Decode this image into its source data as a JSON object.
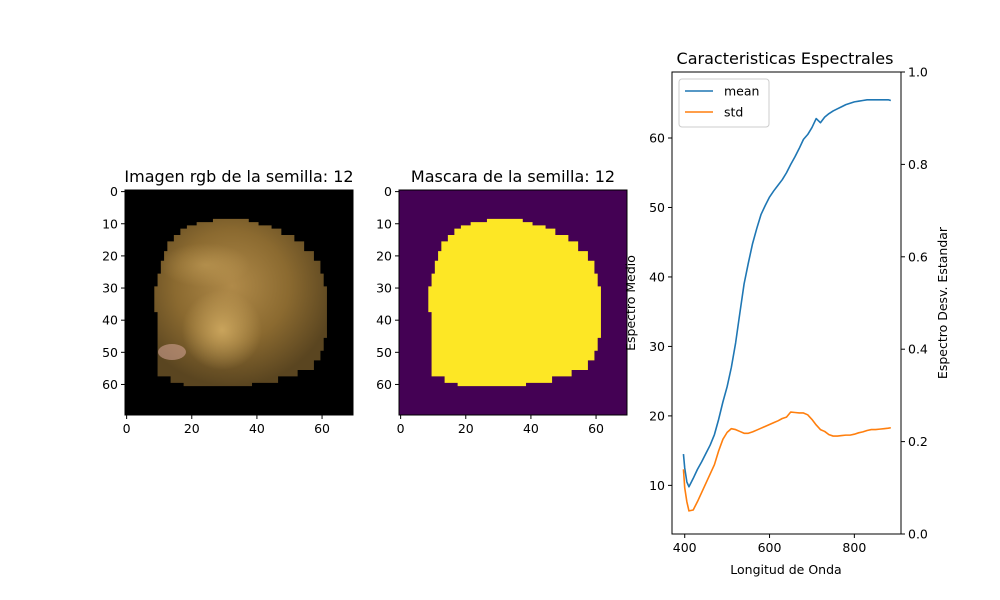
{
  "chart_data": [
    {
      "type": "image",
      "title": "Imagen rgb de la semilla: 12",
      "xticks": [
        "0",
        "20",
        "40",
        "60"
      ],
      "yticks": [
        "0",
        "10",
        "20",
        "30",
        "40",
        "50",
        "60"
      ],
      "xlim": [
        0,
        70
      ],
      "ylim": [
        70,
        0
      ],
      "colors": {
        "background": "#000000",
        "seed_main": "#8a6a2e",
        "seed_highlight": "#c9a35b",
        "seed_shadow": "#4a3a1e",
        "seed_pink": "#d8a89a"
      }
    },
    {
      "type": "image",
      "title": "Mascara de la semilla: 12",
      "xticks": [
        "0",
        "20",
        "40",
        "60"
      ],
      "yticks": [
        "0",
        "10",
        "20",
        "30",
        "40",
        "50",
        "60"
      ],
      "xlim": [
        0,
        70
      ],
      "ylim": [
        70,
        0
      ],
      "colors": {
        "background": "#440154",
        "mask": "#fde725"
      },
      "mask_rows": [
        {
          "y": 9,
          "x0": 27,
          "x1": 37
        },
        {
          "y": 10,
          "x0": 22,
          "x1": 40
        },
        {
          "y": 11,
          "x0": 19,
          "x1": 44
        },
        {
          "y": 12,
          "x0": 17,
          "x1": 47
        },
        {
          "y": 14,
          "x0": 15,
          "x1": 51
        },
        {
          "y": 16,
          "x0": 13,
          "x1": 54
        },
        {
          "y": 19,
          "x0": 12,
          "x1": 57
        },
        {
          "y": 22,
          "x0": 11,
          "x1": 59
        },
        {
          "y": 26,
          "x0": 10,
          "x1": 60
        },
        {
          "y": 30,
          "x0": 9,
          "x1": 61
        },
        {
          "y": 34,
          "x0": 9,
          "x1": 61
        },
        {
          "y": 38,
          "x0": 10,
          "x1": 61
        },
        {
          "y": 42,
          "x0": 10,
          "x1": 61
        },
        {
          "y": 46,
          "x0": 10,
          "x1": 60
        },
        {
          "y": 50,
          "x0": 10,
          "x1": 59
        },
        {
          "y": 53,
          "x0": 10,
          "x1": 57
        },
        {
          "y": 56,
          "x0": 10,
          "x1": 52
        },
        {
          "y": 58,
          "x0": 14,
          "x1": 46
        },
        {
          "y": 60,
          "x0": 18,
          "x1": 38
        }
      ]
    },
    {
      "type": "line",
      "title": "Caracteristicas Espectrales",
      "xlabel": "Longitud de Onda",
      "ylabel": "Espectro Medio",
      "ylabel_right": "Espectro Desv. Estandar",
      "xlim": [
        370,
        910
      ],
      "ylim": [
        3,
        69.5
      ],
      "ylim_right": [
        0.0,
        1.0
      ],
      "xticks": [
        400,
        600,
        800
      ],
      "yticks": [
        10,
        20,
        30,
        40,
        50,
        60
      ],
      "yticks_right": [
        "0.0",
        "0.2",
        "0.4",
        "0.6",
        "0.8",
        "1.0"
      ],
      "legend": "upper-left",
      "grid": false,
      "series": [
        {
          "name": "mean",
          "color": "#1f77b4",
          "x": [
            397,
            400,
            405,
            410,
            420,
            430,
            440,
            450,
            460,
            470,
            480,
            490,
            500,
            510,
            520,
            530,
            540,
            550,
            560,
            570,
            580,
            590,
            600,
            610,
            620,
            630,
            640,
            650,
            660,
            670,
            680,
            690,
            700,
            710,
            720,
            730,
            740,
            750,
            760,
            770,
            780,
            790,
            800,
            810,
            820,
            830,
            840,
            850,
            860,
            870,
            880,
            886
          ],
          "y": [
            14.5,
            12.5,
            10.5,
            9.8,
            11.0,
            12.3,
            13.4,
            14.6,
            15.8,
            17.3,
            19.5,
            22.0,
            24.2,
            27.0,
            30.5,
            34.8,
            39.0,
            42.0,
            44.8,
            47.0,
            49.0,
            50.3,
            51.5,
            52.4,
            53.2,
            54.0,
            55.0,
            56.2,
            57.3,
            58.5,
            59.8,
            60.5,
            61.5,
            62.8,
            62.2,
            63.0,
            63.5,
            63.9,
            64.2,
            64.5,
            64.8,
            65.0,
            65.2,
            65.3,
            65.4,
            65.5,
            65.5,
            65.5,
            65.5,
            65.5,
            65.5,
            65.4
          ]
        },
        {
          "name": "std",
          "color": "#ff7f0e",
          "x": [
            397,
            400,
            405,
            410,
            420,
            430,
            440,
            450,
            460,
            470,
            480,
            490,
            500,
            510,
            520,
            530,
            540,
            550,
            560,
            570,
            580,
            590,
            600,
            610,
            620,
            630,
            640,
            650,
            660,
            670,
            680,
            690,
            700,
            710,
            720,
            730,
            740,
            750,
            760,
            770,
            780,
            790,
            800,
            810,
            820,
            830,
            840,
            850,
            860,
            870,
            880,
            886
          ],
          "y": [
            0.14,
            0.1,
            0.07,
            0.05,
            0.052,
            0.07,
            0.09,
            0.11,
            0.13,
            0.15,
            0.18,
            0.205,
            0.22,
            0.228,
            0.226,
            0.222,
            0.218,
            0.218,
            0.221,
            0.225,
            0.229,
            0.233,
            0.237,
            0.241,
            0.245,
            0.25,
            0.253,
            0.264,
            0.263,
            0.262,
            0.262,
            0.258,
            0.248,
            0.236,
            0.226,
            0.222,
            0.215,
            0.212,
            0.212,
            0.213,
            0.214,
            0.214,
            0.216,
            0.219,
            0.221,
            0.224,
            0.226,
            0.226,
            0.227,
            0.228,
            0.229,
            0.23
          ]
        }
      ]
    }
  ]
}
